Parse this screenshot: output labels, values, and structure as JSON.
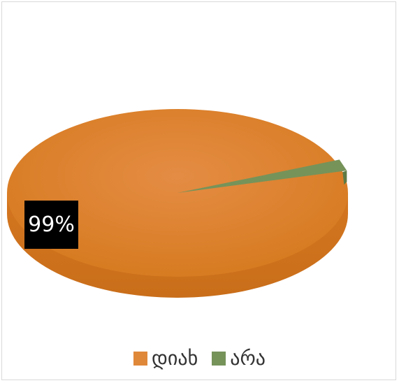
{
  "chart_data": {
    "type": "pie",
    "title": "",
    "categories": [
      "დიახ",
      "არა"
    ],
    "values": [
      99,
      1
    ],
    "data_labels": [
      "99%"
    ],
    "colors": [
      "#E0883A",
      "#76935A"
    ],
    "legend_position": "bottom",
    "style": "3d"
  }
}
